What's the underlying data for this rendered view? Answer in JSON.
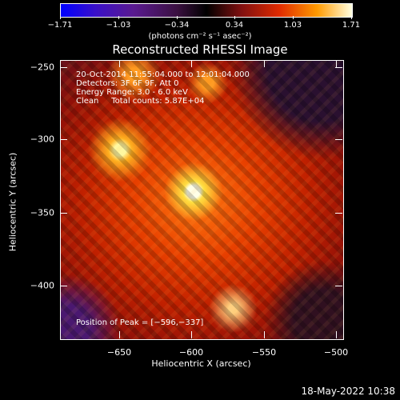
{
  "colorbar": {
    "ticks": [
      "−1.71",
      "−1.03",
      "−0.34",
      "0.34",
      "1.03",
      "1.71"
    ],
    "unit": "(photons cm⁻² s⁻¹ asec⁻²)"
  },
  "title": "Reconstructed RHESSI Image",
  "annotations": {
    "time": "20-Oct-2014 11:55:04.000 to 12:01:04.000",
    "detectors": "Detectors: 3F 6F 9F, Att 0",
    "energy": "Energy Range: 3.0 - 6.0 keV",
    "method": "Clean     Total counts: 5.87E+04",
    "peak": "Position of Peak = [−596,−337]"
  },
  "axes": {
    "x_ticks": [
      "−650",
      "−600",
      "−550",
      "−500"
    ],
    "y_ticks": [
      "−250",
      "−300",
      "−350",
      "−400"
    ],
    "xlabel": "Heliocentric X (arcsec)",
    "ylabel": "Heliocentric Y (arcsec)"
  },
  "timestamp": "18-May-2022 10:38"
}
